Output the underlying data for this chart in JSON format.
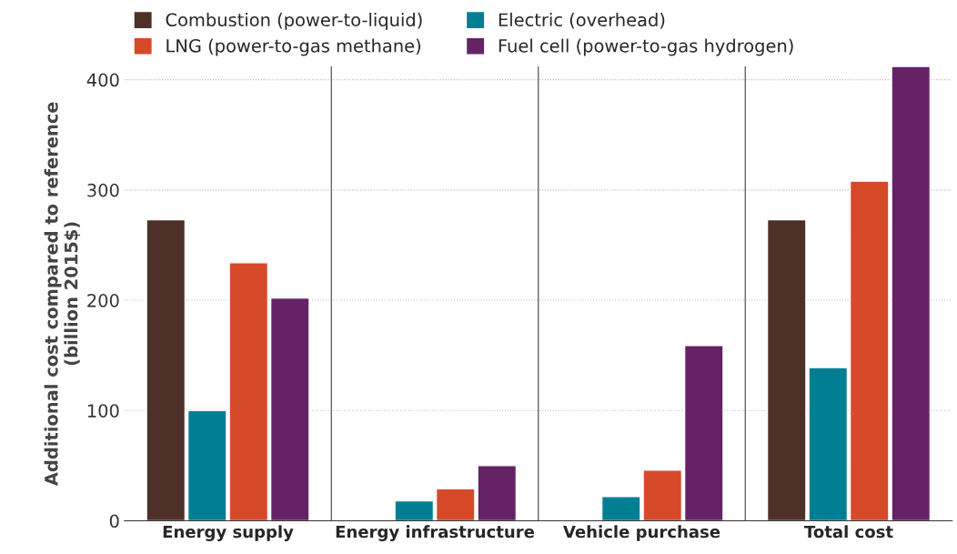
{
  "chart_data": {
    "type": "bar",
    "ylabel": "Additional cost compared to reference\n(billion 2015$)",
    "categories": [
      "Energy supply",
      "Energy infrastructure",
      "Vehicle purchase",
      "Total cost"
    ],
    "series": [
      {
        "name": "Combustion (power-to-liquid)",
        "color": "#4d3028",
        "values": [
          273,
          null,
          null,
          273
        ]
      },
      {
        "name": "Electric (overhead)",
        "color": "#007f93",
        "values": [
          100,
          18,
          22,
          139
        ]
      },
      {
        "name": "LNG (power-to-gas methane)",
        "color": "#d64a2a",
        "values": [
          234,
          29,
          46,
          308
        ]
      },
      {
        "name": "Fuel cell (power-to-gas hydrogen)",
        "color": "#652365",
        "values": [
          202,
          50,
          159,
          412
        ]
      }
    ],
    "ylim": [
      0,
      412
    ],
    "yticks": [
      0,
      100,
      200,
      300,
      400
    ],
    "grid": "y",
    "legend": "top"
  }
}
